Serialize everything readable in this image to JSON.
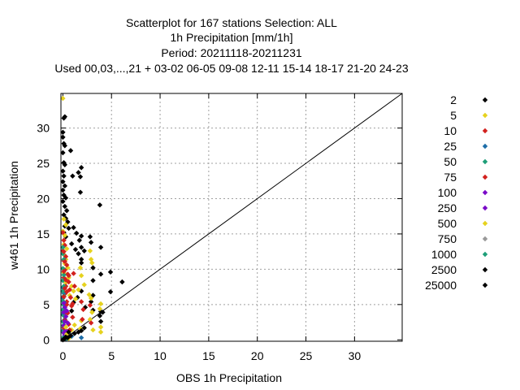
{
  "chart_data": {
    "type": "scatter",
    "title_lines": [
      "Scatterplot for  167 stations Selection: ALL",
      "1h Precipitation [mm/1h]",
      "Period: 20211118-20211231",
      "Used  00,03,...,21  + 03-02 06-05 09-08 12-11 15-14 18-17 21-20 24-23"
    ],
    "xlabel": "OBS 1h Precipitation",
    "ylabel": "w461 1h Precipitation",
    "xlim": [
      -0.2,
      34.9
    ],
    "ylim": [
      -0.2,
      34.9
    ],
    "x_ticks": [
      "0",
      "5",
      "10",
      "15",
      "20",
      "25",
      "30"
    ],
    "y_ticks": [
      "0",
      "5",
      "10",
      "15",
      "20",
      "25",
      "30"
    ],
    "grid": true,
    "legend_position": "right",
    "diagonal_line": true,
    "series": [
      {
        "name": "2",
        "color": "#000000",
        "points": [
          [
            0.1,
            31.4
          ],
          [
            0.2,
            31.6
          ],
          [
            0,
            29.4
          ],
          [
            0,
            28.7
          ],
          [
            0.1,
            27.8
          ],
          [
            0,
            26.5
          ],
          [
            0.1,
            25.1
          ],
          [
            0.2,
            24.8
          ],
          [
            0,
            23.9
          ],
          [
            0.1,
            23.2
          ],
          [
            0,
            22.4
          ],
          [
            0.2,
            21.8
          ],
          [
            0,
            21.2
          ],
          [
            0.1,
            20.5
          ],
          [
            0.3,
            20.1
          ],
          [
            0,
            19.6
          ],
          [
            0.2,
            18.9
          ],
          [
            0.4,
            18.3
          ],
          [
            0.1,
            17.7
          ],
          [
            0.3,
            17.2
          ],
          [
            0.5,
            16.7
          ],
          [
            0.2,
            16.1
          ],
          [
            0.6,
            15.8
          ],
          [
            0.1,
            15.2
          ],
          [
            0.3,
            14.6
          ],
          [
            0.2,
            27.5
          ],
          [
            0.8,
            26.8
          ],
          [
            1.0,
            23.2
          ],
          [
            1.6,
            23.7
          ],
          [
            1.8,
            23.1
          ],
          [
            1.9,
            24.4
          ],
          [
            1.8,
            20.9
          ],
          [
            1.1,
            15.9
          ],
          [
            1.4,
            15.1
          ],
          [
            1.9,
            14.7
          ],
          [
            1.7,
            14.1
          ],
          [
            0.9,
            13.6
          ],
          [
            1.3,
            12.8
          ],
          [
            1.9,
            10.9
          ],
          [
            1.6,
            12.2
          ],
          [
            1.9,
            13.1
          ],
          [
            2.2,
            12.6
          ],
          [
            1.9,
            11.4
          ],
          [
            2.8,
            14.6
          ],
          [
            2.9,
            13.8
          ],
          [
            3.9,
            13.1
          ],
          [
            3.8,
            19.1
          ],
          [
            3.1,
            10.2
          ],
          [
            4.9,
            9.6
          ],
          [
            3.9,
            9.3
          ],
          [
            3.1,
            8.4
          ],
          [
            4.9,
            6.8
          ],
          [
            6.1,
            8.2
          ],
          [
            3.1,
            6.3
          ],
          [
            2.9,
            5.4
          ],
          [
            2.3,
            4.6
          ],
          [
            1.9,
            6.9
          ],
          [
            1.5,
            6.0
          ],
          [
            1.1,
            5.3
          ],
          [
            0.9,
            4.1
          ],
          [
            3.9,
            4.0
          ],
          [
            3.8,
            3.4
          ],
          [
            3.1,
            4.2
          ],
          [
            3.9,
            2.6
          ],
          [
            4.1,
            3.9
          ]
        ]
      },
      {
        "name": "5",
        "color": "#e6d21e",
        "points": [
          [
            0,
            34.2
          ],
          [
            0.1,
            17.1
          ],
          [
            0.3,
            16.3
          ],
          [
            0,
            15.4
          ],
          [
            0.2,
            14.8
          ],
          [
            0.1,
            13.5
          ],
          [
            0.4,
            12.9
          ],
          [
            0.1,
            12.1
          ],
          [
            0.3,
            11.4
          ],
          [
            0.2,
            10.8
          ],
          [
            0.5,
            10.2
          ],
          [
            0.1,
            9.5
          ],
          [
            0.6,
            8.8
          ],
          [
            0.3,
            8.1
          ],
          [
            0.9,
            7.6
          ],
          [
            1.1,
            6.9
          ],
          [
            0.7,
            6.3
          ],
          [
            1.3,
            5.8
          ],
          [
            1.8,
            10.2
          ],
          [
            1.9,
            9.1
          ],
          [
            2.2,
            7.8
          ],
          [
            1.6,
            7.1
          ],
          [
            2.7,
            6.4
          ],
          [
            2.9,
            5.9
          ],
          [
            3.0,
            10.9
          ],
          [
            2.8,
            12.6
          ],
          [
            2.9,
            11.4
          ],
          [
            3.9,
            5.1
          ],
          [
            3.8,
            4.4
          ],
          [
            3.9,
            1.8
          ],
          [
            3.9,
            1.1
          ],
          [
            3.1,
            1.4
          ],
          [
            3.0,
            3.9
          ],
          [
            1.9,
            2.7
          ],
          [
            2.8,
            2.9
          ],
          [
            1.8,
            1.6
          ],
          [
            0.9,
            1.4
          ],
          [
            1.2,
            2.1
          ]
        ]
      },
      {
        "name": "10",
        "color": "#d2211e",
        "points": [
          [
            0,
            15.2
          ],
          [
            0.1,
            14.1
          ],
          [
            0.2,
            13.4
          ],
          [
            0,
            12.6
          ],
          [
            0.3,
            11.8
          ],
          [
            0.1,
            11.2
          ],
          [
            0.4,
            10.6
          ],
          [
            0.2,
            9.9
          ],
          [
            0.5,
            9.3
          ],
          [
            0.1,
            8.8
          ],
          [
            0.6,
            8.2
          ],
          [
            0.3,
            7.6
          ],
          [
            0.7,
            7.1
          ],
          [
            0.2,
            6.5
          ],
          [
            0.8,
            6.0
          ],
          [
            0.4,
            5.4
          ],
          [
            0.9,
            4.8
          ],
          [
            0.1,
            4.3
          ],
          [
            0.5,
            3.8
          ],
          [
            1.0,
            3.2
          ],
          [
            0.2,
            2.7
          ],
          [
            0.6,
            2.2
          ],
          [
            1.1,
            9.4
          ],
          [
            1.2,
            7.6
          ],
          [
            1.0,
            5.1
          ],
          [
            1.9,
            5.4
          ],
          [
            2.1,
            4.3
          ],
          [
            2.8,
            4.9
          ],
          [
            2.0,
            2.9
          ],
          [
            2.9,
            2.4
          ],
          [
            0.3,
            0.9
          ],
          [
            0.7,
            1.4
          ]
        ]
      },
      {
        "name": "25",
        "color": "#1e6ea8",
        "points": [
          [
            0,
            7.4
          ],
          [
            0.1,
            6.6
          ],
          [
            0,
            5.9
          ],
          [
            0.2,
            5.2
          ],
          [
            0.1,
            4.4
          ],
          [
            0,
            3.6
          ],
          [
            0.2,
            2.9
          ],
          [
            0.1,
            2.1
          ],
          [
            0,
            1.3
          ],
          [
            0.2,
            0.6
          ],
          [
            0.3,
            3.3
          ],
          [
            0.1,
            1.7
          ],
          [
            1.9,
            0.3
          ],
          [
            0.9,
            0.5
          ],
          [
            0.4,
            0.4
          ]
        ]
      },
      {
        "name": "50",
        "color": "#1e9e78",
        "points": [
          [
            0,
            12.2
          ],
          [
            0.1,
            11.4
          ],
          [
            0,
            10.1
          ],
          [
            0.1,
            9.2
          ],
          [
            0,
            8.4
          ],
          [
            0.1,
            7.6
          ],
          [
            0,
            6.9
          ],
          [
            0.1,
            6.2
          ],
          [
            0,
            5.5
          ],
          [
            0.1,
            4.9
          ],
          [
            0,
            4.2
          ],
          [
            0.1,
            3.4
          ],
          [
            0,
            2.6
          ],
          [
            0.1,
            1.9
          ],
          [
            0,
            1.1
          ],
          [
            0.1,
            0.4
          ],
          [
            0,
            13.1
          ]
        ]
      },
      {
        "name": "75",
        "color": "#d2211e",
        "points": [
          [
            0.1,
            12.5
          ],
          [
            0.2,
            11.1
          ],
          [
            0.1,
            9.7
          ],
          [
            0.3,
            8.5
          ],
          [
            0.2,
            7.3
          ],
          [
            0.1,
            6.1
          ],
          [
            0.4,
            5.0
          ],
          [
            0.3,
            3.9
          ],
          [
            0.2,
            2.8
          ],
          [
            0.1,
            1.7
          ],
          [
            0.5,
            1.2
          ],
          [
            0.4,
            6.8
          ],
          [
            0.6,
            9.1
          ]
        ]
      },
      {
        "name": "100",
        "color": "#7a0ac8",
        "points": [
          [
            0.1,
            5.2
          ],
          [
            0.2,
            4.6
          ],
          [
            0.1,
            3.9
          ],
          [
            0.3,
            3.3
          ],
          [
            0.2,
            2.6
          ],
          [
            0.1,
            2.0
          ],
          [
            0.3,
            1.3
          ],
          [
            0.2,
            0.7
          ],
          [
            0.4,
            4.1
          ],
          [
            0.5,
            2.4
          ]
        ]
      },
      {
        "name": "250",
        "color": "#7a0ac8",
        "points": [
          [
            0.1,
            0.2
          ],
          [
            0.2,
            0.5
          ],
          [
            0.3,
            0.1
          ],
          [
            0.1,
            1.0
          ]
        ]
      },
      {
        "name": "500",
        "color": "#e6d21e",
        "points": [
          [
            0.2,
            0.3
          ],
          [
            0.4,
            0.8
          ],
          [
            0.6,
            0.2
          ],
          [
            0.3,
            1.8
          ]
        ]
      },
      {
        "name": "750",
        "color": "#999999",
        "points": [
          [
            0.1,
            0.1
          ],
          [
            0.3,
            0.4
          ]
        ]
      },
      {
        "name": "1000",
        "color": "#1e9e78",
        "points": [
          [
            0.1,
            0.3
          ],
          [
            0.2,
            0.1
          ],
          [
            0.4,
            0.2
          ]
        ]
      },
      {
        "name": "2500",
        "color": "#000000",
        "points": [
          [
            0.1,
            0.1
          ],
          [
            0.2,
            0.2
          ],
          [
            0.5,
            0.3
          ],
          [
            0.8,
            0.6
          ],
          [
            1.2,
            0.9
          ],
          [
            1.6,
            1.1
          ],
          [
            1.9,
            1.3
          ],
          [
            2.2,
            1.7
          ],
          [
            0.3,
            0.4
          ],
          [
            0.6,
            1.1
          ]
        ]
      },
      {
        "name": "25000",
        "color": "#000000",
        "points": [
          [
            0,
            0
          ],
          [
            0.1,
            0.1
          ]
        ]
      }
    ]
  }
}
